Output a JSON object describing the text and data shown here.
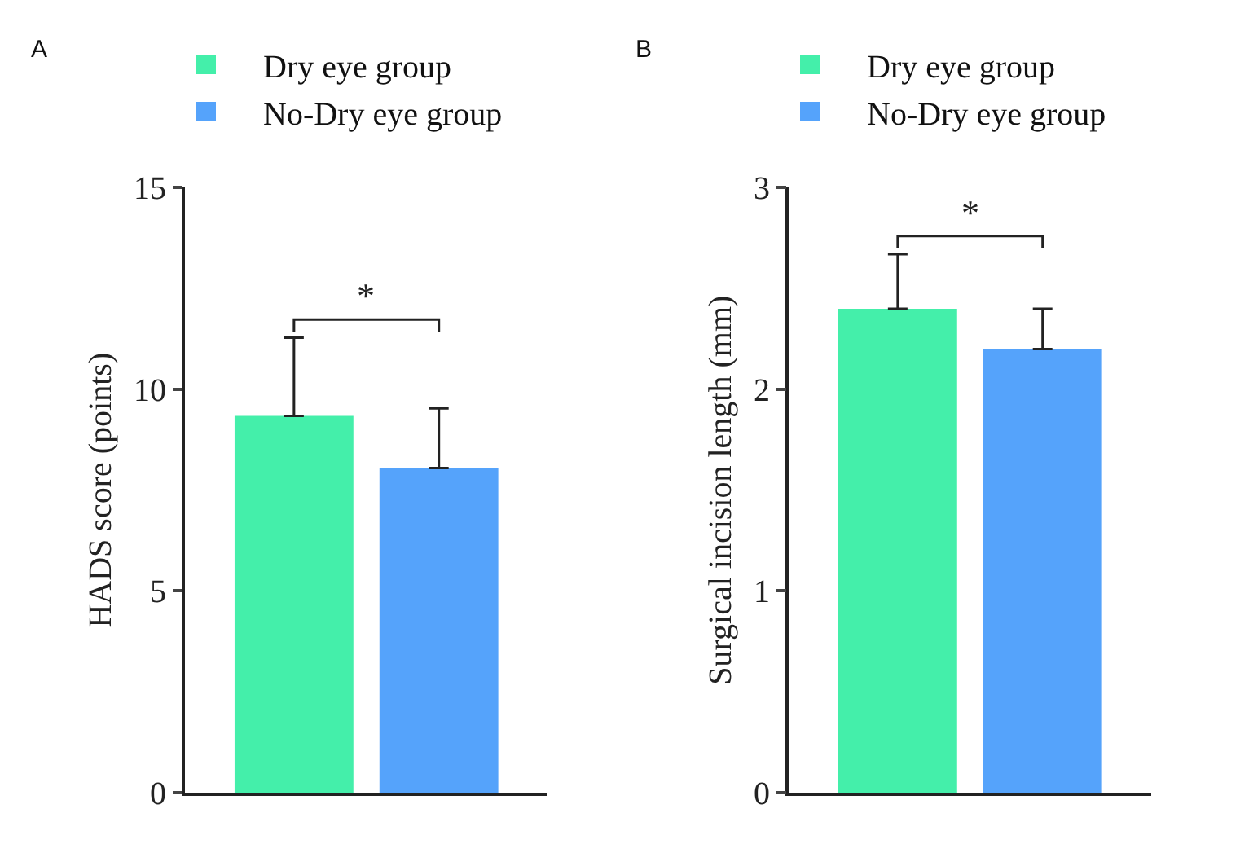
{
  "chart_data": [
    {
      "type": "bar",
      "title": "A",
      "ylabel": "HADS score (points)",
      "categories": [
        null
      ],
      "series": [
        {
          "name": "Dry eye group",
          "color": "#44efaa",
          "values": [
            9.34
          ],
          "errors": [
            [
              9.34,
              11.28
            ]
          ]
        },
        {
          "name": "No-Dry eye group",
          "color": "#55a3fb",
          "values": [
            8.05
          ],
          "errors": [
            [
              8.05,
              9.53
            ]
          ]
        }
      ],
      "ylim": [
        0,
        15
      ],
      "yticks": [
        0,
        5,
        10,
        15
      ],
      "legend": "top",
      "annotations": [
        "*"
      ]
    },
    {
      "type": "bar",
      "title": "B",
      "ylabel": "Surgical incision length (mm)",
      "categories": [
        null
      ],
      "series": [
        {
          "name": "Dry eye group",
          "color": "#44efaa",
          "values": [
            2.4
          ],
          "errors": [
            [
              2.4,
              2.67
            ]
          ]
        },
        {
          "name": "No-Dry eye group",
          "color": "#55a3fb",
          "values": [
            2.2
          ],
          "errors": [
            [
              2.2,
              2.4
            ]
          ]
        }
      ],
      "ylim": [
        0,
        3
      ],
      "yticks": [
        0,
        1,
        2,
        3
      ],
      "legend": "top",
      "annotations": [
        "*"
      ]
    }
  ]
}
